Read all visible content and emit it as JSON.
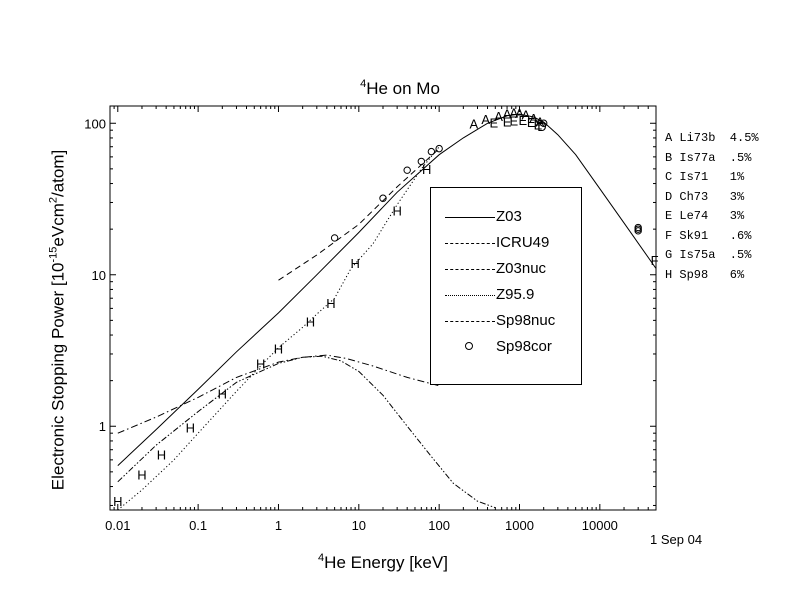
{
  "chart_data": {
    "type": "line",
    "title": {
      "sup": "4",
      "text": "He on Mo"
    },
    "xlabel": {
      "sup": "4",
      "text": "He Energy [keV]"
    },
    "ylabel": {
      "pre": "Electronic Stopping Power [10",
      "sup1": "-15",
      "mid": "eVcm",
      "sup2": "2",
      "post": "/atom]"
    },
    "x_scale": "log",
    "y_scale": "log",
    "xlim": [
      0.008,
      50000
    ],
    "ylim": [
      0.28,
      130
    ],
    "x_ticks": [
      {
        "v": 0.01,
        "label": "0.01"
      },
      {
        "v": 0.1,
        "label": "0.1"
      },
      {
        "v": 1,
        "label": "1"
      },
      {
        "v": 10,
        "label": "10"
      },
      {
        "v": 100,
        "label": "100"
      },
      {
        "v": 1000,
        "label": "1000"
      },
      {
        "v": 10000,
        "label": "10000"
      }
    ],
    "y_ticks": [
      {
        "v": 1,
        "label": "1"
      },
      {
        "v": 10,
        "label": "10"
      },
      {
        "v": 100,
        "label": "100"
      }
    ],
    "legend_position": "center-right",
    "series": [
      {
        "name": "Z03",
        "style": "solid",
        "x": [
          0.01,
          0.03,
          0.1,
          0.3,
          1,
          3,
          10,
          30,
          100,
          200,
          400,
          700,
          1000,
          1500,
          2000,
          3000,
          5000,
          10000,
          20000,
          50000
        ],
        "y": [
          0.55,
          0.95,
          1.75,
          3.1,
          5.6,
          10,
          19,
          35,
          62,
          80,
          100,
          112,
          115,
          110,
          102,
          84,
          62,
          37,
          22,
          11
        ]
      },
      {
        "name": "ICRU49",
        "style": "dashed",
        "x": [
          1,
          3,
          10,
          30,
          100
        ],
        "y": [
          9.2,
          13.5,
          21.5,
          38,
          68
        ]
      },
      {
        "name": "Z03nuc",
        "style": "dashdot",
        "x": [
          0.01,
          0.03,
          0.1,
          0.3,
          1,
          2,
          4,
          7,
          15,
          40,
          100
        ],
        "y": [
          0.9,
          1.15,
          1.55,
          2.1,
          2.65,
          2.85,
          2.95,
          2.8,
          2.5,
          2.1,
          1.85
        ]
      },
      {
        "name": "Z95.9",
        "style": "dotted",
        "x": [
          0.01,
          0.02,
          0.05,
          0.1,
          0.3,
          0.6,
          1,
          2,
          3,
          5,
          8,
          15,
          30,
          60,
          100
        ],
        "y": [
          0.28,
          0.38,
          0.6,
          0.9,
          1.7,
          2.5,
          3.3,
          4.5,
          5.5,
          7,
          11,
          16,
          29,
          50,
          70
        ]
      },
      {
        "name": "Sp98nuc",
        "style": "dashdotdot",
        "x": [
          0.01,
          0.03,
          0.1,
          0.3,
          1,
          2,
          3.5,
          6,
          10,
          20,
          40,
          80,
          150,
          300,
          500
        ],
        "y": [
          0.43,
          0.75,
          1.25,
          1.95,
          2.6,
          2.85,
          2.9,
          2.7,
          2.3,
          1.6,
          1.0,
          0.63,
          0.42,
          0.32,
          0.29
        ]
      },
      {
        "name": "Sp98cor",
        "style": "circle",
        "x": [
          5,
          20,
          40,
          60,
          80,
          100,
          2000,
          30000,
          30000,
          30000
        ],
        "y": [
          17.5,
          32,
          49,
          56,
          65,
          68,
          100,
          20,
          19.5,
          20.5
        ]
      }
    ],
    "letter_points": [
      {
        "t": "H",
        "x": 0.01,
        "y": 0.32
      },
      {
        "t": "H",
        "x": 0.02,
        "y": 0.48
      },
      {
        "t": "H",
        "x": 0.035,
        "y": 0.65
      },
      {
        "t": "H",
        "x": 0.08,
        "y": 0.98
      },
      {
        "t": "H",
        "x": 0.2,
        "y": 1.65
      },
      {
        "t": "H",
        "x": 0.6,
        "y": 2.6
      },
      {
        "t": "H",
        "x": 1,
        "y": 3.25
      },
      {
        "t": "H",
        "x": 2.5,
        "y": 4.9
      },
      {
        "t": "H",
        "x": 4.5,
        "y": 6.5
      },
      {
        "t": "H",
        "x": 9,
        "y": 12
      },
      {
        "t": "H",
        "x": 30,
        "y": 26.5
      },
      {
        "t": "H",
        "x": 70,
        "y": 50
      },
      {
        "t": "A",
        "x": 270,
        "y": 100
      },
      {
        "t": "A",
        "x": 380,
        "y": 107
      },
      {
        "t": "E",
        "x": 480,
        "y": 101
      },
      {
        "t": "A",
        "x": 550,
        "y": 112
      },
      {
        "t": "A",
        "x": 700,
        "y": 116
      },
      {
        "t": "E",
        "x": 700,
        "y": 103
      },
      {
        "t": "A",
        "x": 850,
        "y": 118
      },
      {
        "t": "E",
        "x": 850,
        "y": 104
      },
      {
        "t": "A",
        "x": 1000,
        "y": 117
      },
      {
        "t": "E",
        "x": 1100,
        "y": 105
      },
      {
        "t": "A",
        "x": 1200,
        "y": 114
      },
      {
        "t": "E",
        "x": 1400,
        "y": 102
      },
      {
        "t": "A",
        "x": 1500,
        "y": 108
      },
      {
        "t": "E",
        "x": 1700,
        "y": 98
      },
      {
        "t": "A",
        "x": 1800,
        "y": 103
      },
      {
        "t": "D",
        "x": 1900,
        "y": 96
      },
      {
        "t": "F",
        "x": 48000,
        "y": 12.5
      }
    ],
    "references": [
      "A Li73b  4.5%",
      "B Is77a  .5%",
      "C Is71   1%",
      "D Ch73   3%",
      "E Le74   3%",
      "F Sk91   .6%",
      "G Is75a  .5%",
      "H Sp98   6%"
    ],
    "date_stamp": "1 Sep 04"
  }
}
